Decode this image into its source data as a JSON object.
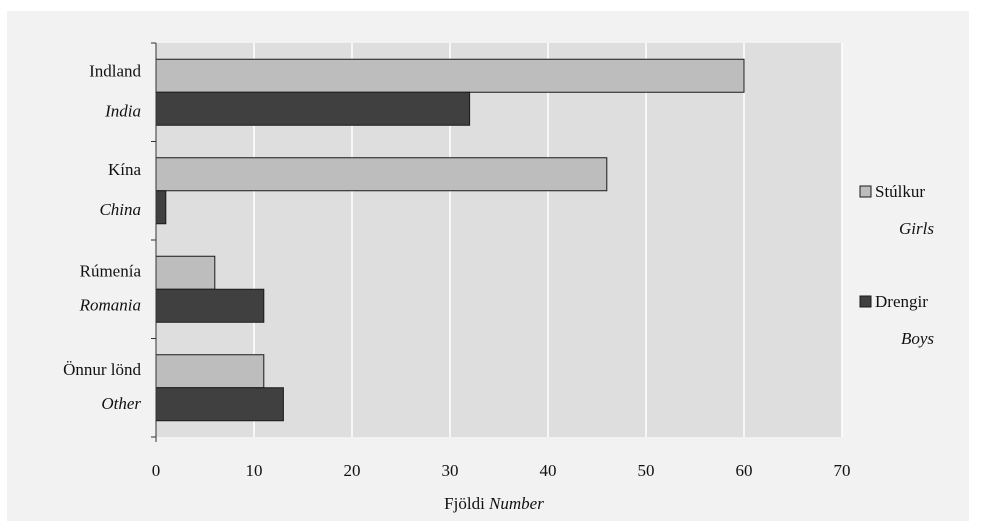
{
  "chart_data": {
    "type": "bar",
    "orientation": "horizontal",
    "categories": [
      {
        "name": "Indland",
        "name_en": "India"
      },
      {
        "name": "Kína",
        "name_en": "China"
      },
      {
        "name": "Rúmenía",
        "name_en": "Romania"
      },
      {
        "name": "Önnur lönd",
        "name_en": "Other"
      }
    ],
    "series": [
      {
        "name": "Stúlkur",
        "name_en": "Girls",
        "color": "#bdbdbd",
        "values": [
          60,
          46,
          6,
          11
        ]
      },
      {
        "name": "Drengir",
        "name_en": "Boys",
        "color": "#404040",
        "values": [
          32,
          1,
          11,
          13
        ]
      }
    ],
    "xlabel": "Fjöldi",
    "xlabel_en": "Number",
    "xlim": [
      0,
      70
    ],
    "xticks": [
      "0",
      "10",
      "20",
      "30",
      "40",
      "50",
      "60",
      "70"
    ],
    "grid": true,
    "legend_position": "right",
    "colors": {
      "plot_background": "#dedede",
      "frame_background": "#f2f2f2",
      "gridline": "#ffffff"
    }
  }
}
